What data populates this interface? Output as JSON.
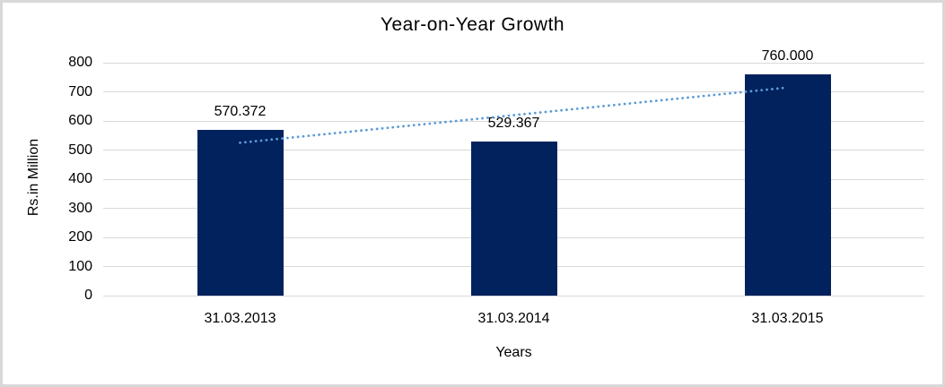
{
  "chart_data": {
    "type": "bar",
    "title": "Year-on-Year Growth",
    "categories": [
      "31.03.2013",
      "31.03.2014",
      "31.03.2015"
    ],
    "values": [
      570.372,
      529.367,
      760.0
    ],
    "value_labels": [
      "570.372",
      "529.367",
      "760.000"
    ],
    "xlabel": "Years",
    "ylabel": "Rs.in Million",
    "ylim": [
      0,
      800
    ],
    "yticks": [
      0,
      100,
      200,
      300,
      400,
      500,
      600,
      700,
      800
    ],
    "grid": true,
    "legend": false,
    "trendline": {
      "type": "linear",
      "style": "dotted"
    },
    "colors": {
      "bar": "#02225e",
      "trendline": "#5b9bd5",
      "gridline": "#d9d9d9",
      "text": "#000000",
      "frame": "#d8d8d8",
      "background": "#ffffff"
    }
  }
}
